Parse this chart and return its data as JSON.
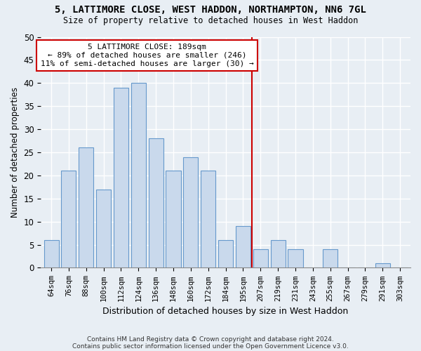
{
  "title_line1": "5, LATTIMORE CLOSE, WEST HADDON, NORTHAMPTON, NN6 7GL",
  "title_line2": "Size of property relative to detached houses in West Haddon",
  "xlabel": "Distribution of detached houses by size in West Haddon",
  "ylabel": "Number of detached properties",
  "bar_labels": [
    "64sqm",
    "76sqm",
    "88sqm",
    "100sqm",
    "112sqm",
    "124sqm",
    "136sqm",
    "148sqm",
    "160sqm",
    "172sqm",
    "184sqm",
    "195sqm",
    "207sqm",
    "219sqm",
    "231sqm",
    "243sqm",
    "255sqm",
    "267sqm",
    "279sqm",
    "291sqm",
    "303sqm"
  ],
  "bar_values": [
    6,
    21,
    26,
    17,
    39,
    40,
    28,
    21,
    24,
    21,
    6,
    9,
    4,
    6,
    4,
    0,
    4,
    0,
    0,
    1,
    0
  ],
  "bar_color": "#c9d9ec",
  "bar_edge_color": "#6699cc",
  "vline_color": "#cc0000",
  "box_edge_color": "#cc0000",
  "annotation_text": "5 LATTIMORE CLOSE: 189sqm\n← 89% of detached houses are smaller (246)\n11% of semi-detached houses are larger (30) →",
  "ylim": [
    0,
    50
  ],
  "yticks": [
    0,
    5,
    10,
    15,
    20,
    25,
    30,
    35,
    40,
    45,
    50
  ],
  "footer_line1": "Contains HM Land Registry data © Crown copyright and database right 2024.",
  "footer_line2": "Contains public sector information licensed under the Open Government Licence v3.0.",
  "bg_color": "#e8eef4",
  "plot_bg_color": "#e8eef4",
  "grid_color": "#ffffff",
  "property_line_x": 11.5
}
